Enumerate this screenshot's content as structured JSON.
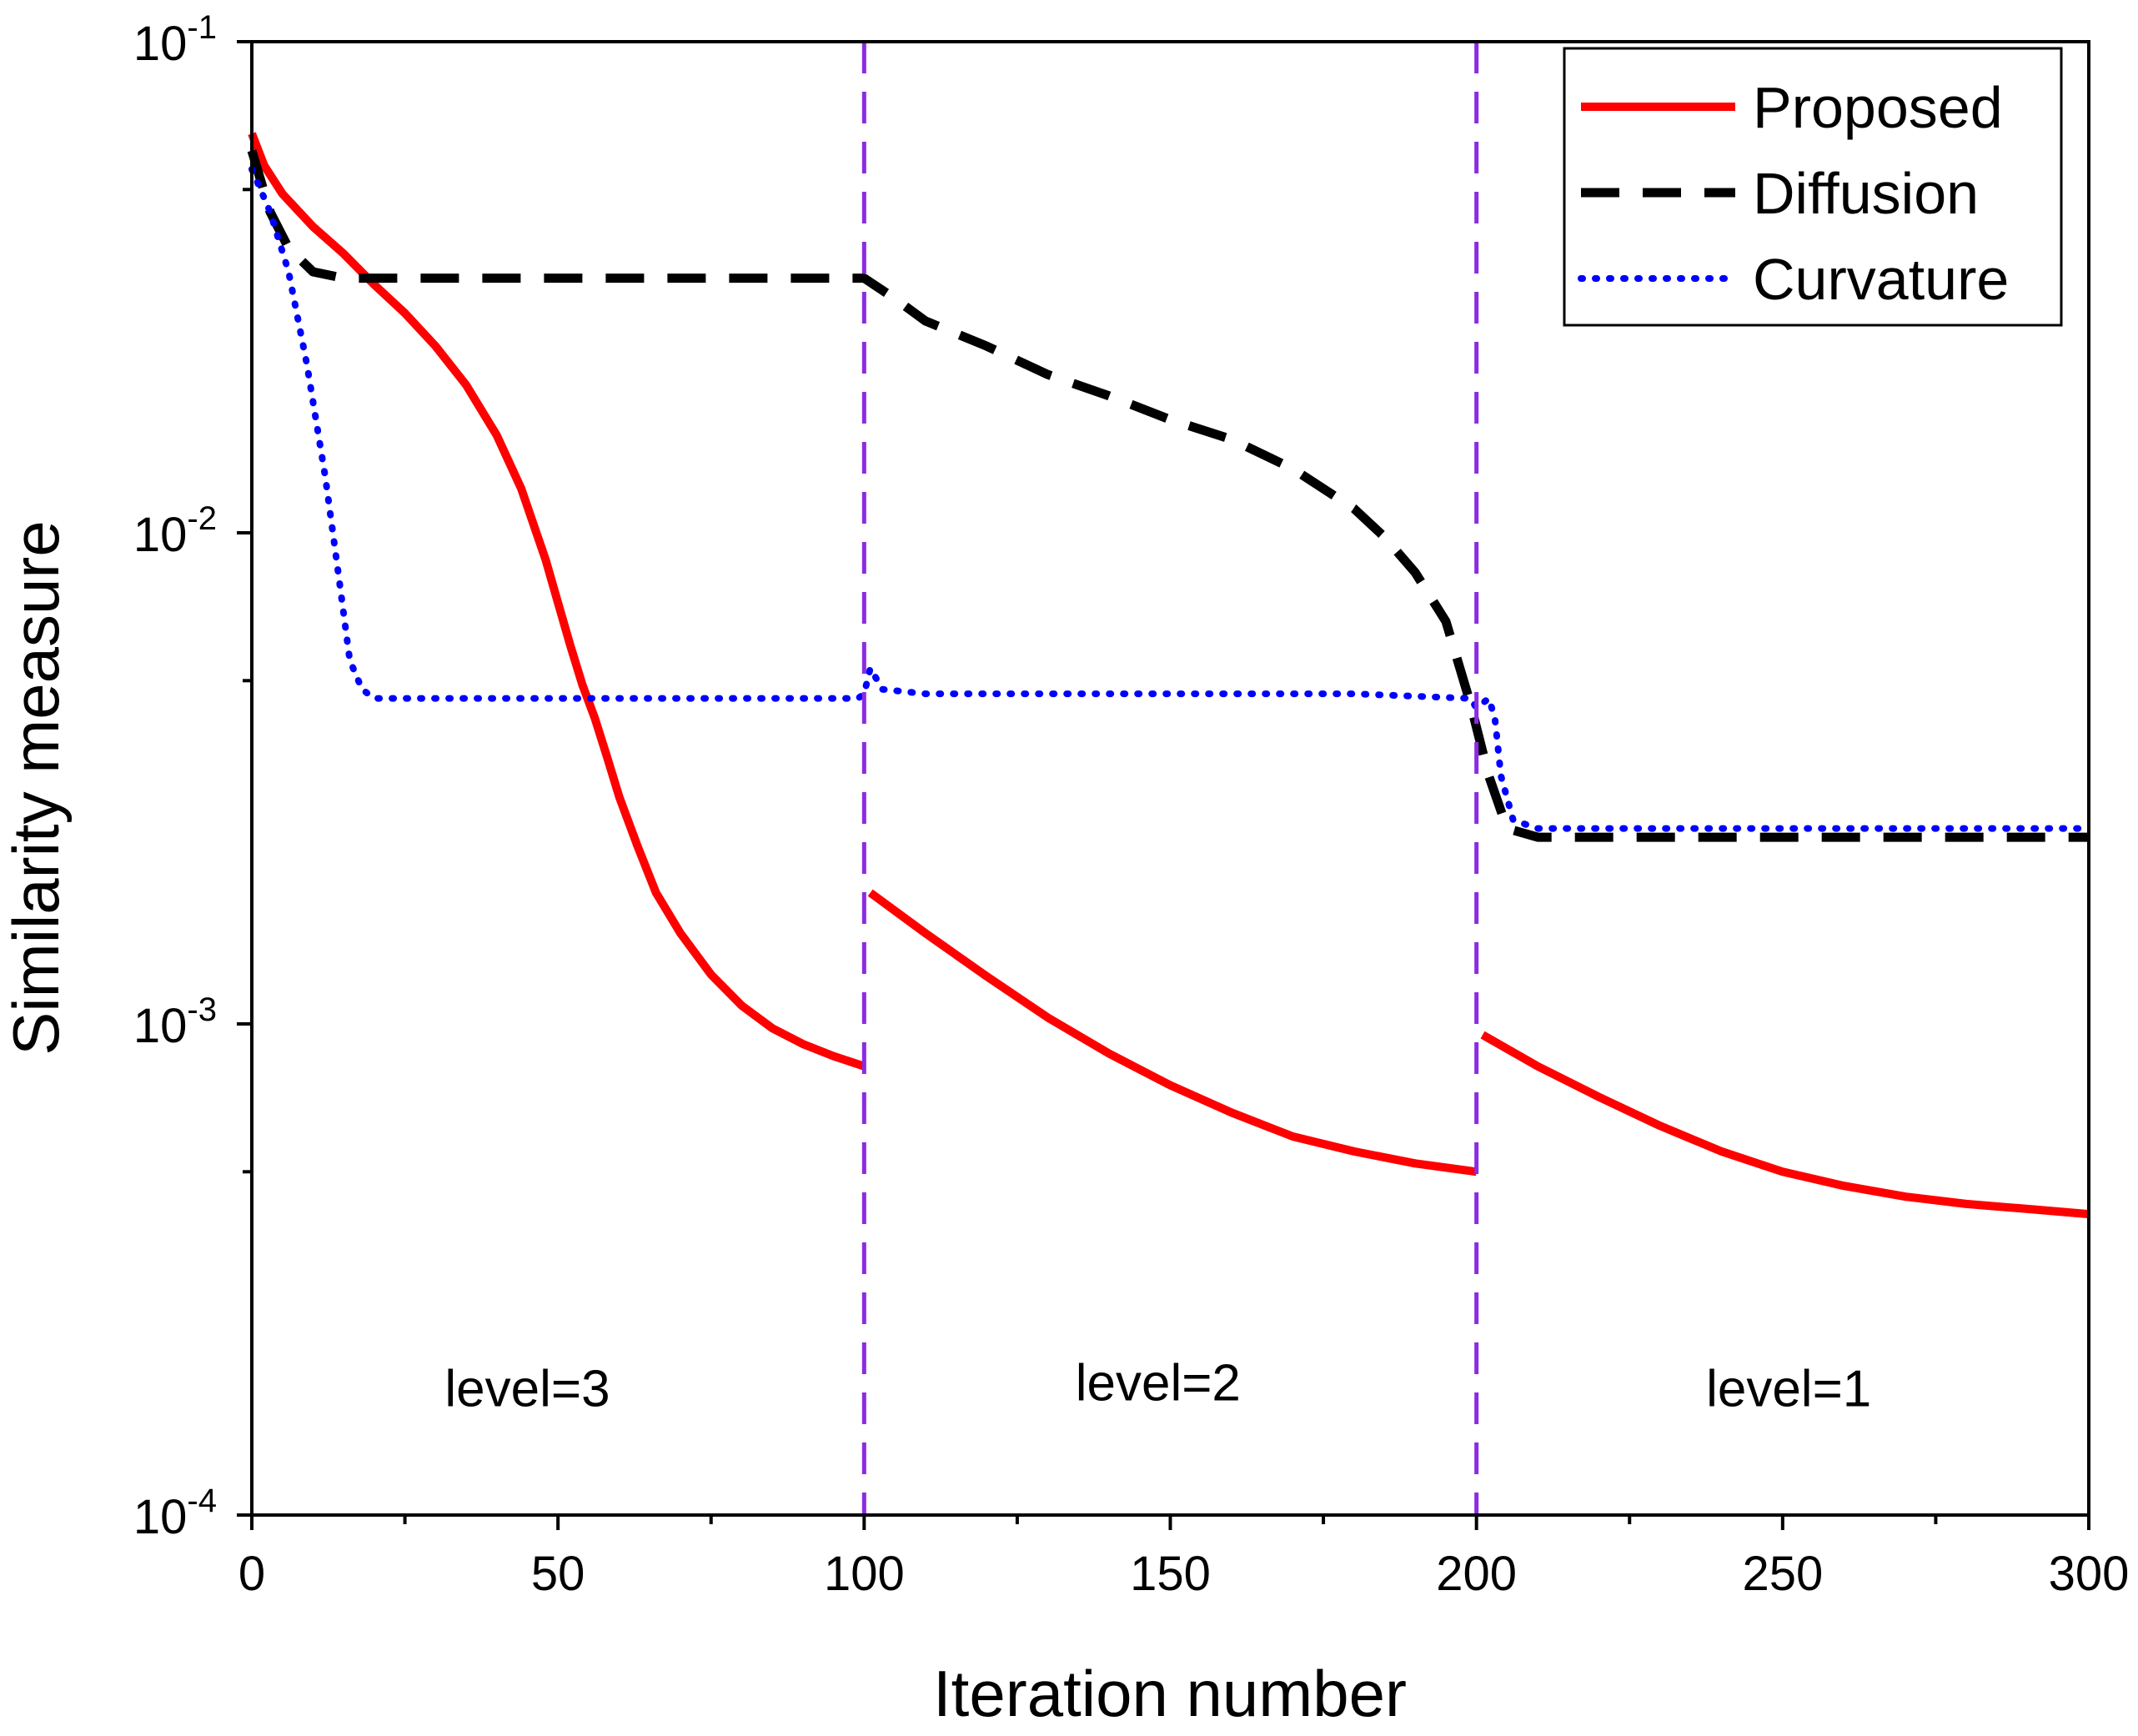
{
  "chart_data": {
    "type": "line",
    "xlabel": "Iteration number",
    "ylabel": "Similarity measure",
    "xlim": [
      0,
      300
    ],
    "ylim": [
      0.0001,
      0.1
    ],
    "yscale": "log",
    "x_ticks": [
      0,
      50,
      100,
      150,
      200,
      250,
      300
    ],
    "x_tick_labels": [
      "0",
      "50",
      "100",
      "150",
      "200",
      "250",
      "300"
    ],
    "y_ticks": [
      {
        "value": 0.1,
        "base": "10",
        "exp": "-1"
      },
      {
        "value": 0.01,
        "base": "10",
        "exp": "-2"
      },
      {
        "value": 0.001,
        "base": "10",
        "exp": "-3"
      },
      {
        "value": 0.0001,
        "base": "10",
        "exp": "-4"
      }
    ],
    "legend_position": "top-right",
    "level_boundaries": [
      100,
      200
    ],
    "level_color": "#8B2BE2",
    "level_labels": [
      {
        "text": "level=3",
        "x": 45,
        "y": 0.00018
      },
      {
        "text": "level=2",
        "x": 148,
        "y": 0.000185
      },
      {
        "text": "level=1",
        "x": 251,
        "y": 0.00018
      }
    ],
    "series": [
      {
        "name": "Proposed",
        "color": "#FF0000",
        "style": "solid",
        "segments": [
          [
            [
              0,
              0.065
            ],
            [
              2,
              0.056
            ],
            [
              5,
              0.049
            ],
            [
              10,
              0.042
            ],
            [
              15,
              0.037
            ],
            [
              20,
              0.032
            ],
            [
              25,
              0.028
            ],
            [
              30,
              0.024
            ],
            [
              35,
              0.02
            ],
            [
              40,
              0.0158
            ],
            [
              44,
              0.0123
            ],
            [
              48,
              0.0088
            ],
            [
              50,
              0.0072
            ],
            [
              52,
              0.0059
            ],
            [
              54,
              0.0049
            ],
            [
              56,
              0.0042
            ],
            [
              58,
              0.0035
            ],
            [
              60,
              0.0029
            ],
            [
              63,
              0.0023
            ],
            [
              66,
              0.00185
            ],
            [
              70,
              0.00153
            ],
            [
              75,
              0.00126
            ],
            [
              80,
              0.00109
            ],
            [
              85,
              0.00098
            ],
            [
              90,
              0.00091
            ],
            [
              95,
              0.00086
            ],
            [
              100,
              0.00082
            ]
          ],
          [
            [
              101,
              0.00185
            ],
            [
              110,
              0.00153
            ],
            [
              120,
              0.00125
            ],
            [
              130,
              0.00103
            ],
            [
              140,
              0.00087
            ],
            [
              150,
              0.00075
            ],
            [
              160,
              0.00066
            ],
            [
              170,
              0.00059
            ],
            [
              180,
              0.00055
            ],
            [
              190,
              0.00052
            ],
            [
              200,
              0.0005
            ]
          ],
          [
            [
              201,
              0.00095
            ],
            [
              210,
              0.00082
            ],
            [
              220,
              0.00071
            ],
            [
              230,
              0.00062
            ],
            [
              240,
              0.00055
            ],
            [
              250,
              0.0005
            ],
            [
              260,
              0.000468
            ],
            [
              270,
              0.000445
            ],
            [
              280,
              0.00043
            ],
            [
              290,
              0.00042
            ],
            [
              300,
              0.00041
            ]
          ]
        ]
      },
      {
        "name": "Diffusion",
        "color": "#000000",
        "style": "dashed",
        "segments": [
          [
            [
              0,
              0.06
            ],
            [
              3,
              0.045
            ],
            [
              6,
              0.038
            ],
            [
              10,
              0.034
            ],
            [
              15,
              0.033
            ],
            [
              30,
              0.033
            ],
            [
              50,
              0.033
            ],
            [
              70,
              0.033
            ],
            [
              90,
              0.033
            ],
            [
              100,
              0.033
            ],
            [
              105,
              0.03
            ],
            [
              110,
              0.027
            ],
            [
              120,
              0.024
            ],
            [
              130,
              0.021
            ],
            [
              140,
              0.019
            ],
            [
              150,
              0.017
            ],
            [
              160,
              0.0155
            ],
            [
              170,
              0.0135
            ],
            [
              180,
              0.0112
            ],
            [
              185,
              0.0098
            ],
            [
              190,
              0.0083
            ],
            [
              195,
              0.0066
            ],
            [
              199,
              0.0045
            ],
            [
              202,
              0.0032
            ],
            [
              205,
              0.0025
            ],
            [
              210,
              0.0024
            ],
            [
              230,
              0.0024
            ],
            [
              250,
              0.0024
            ],
            [
              270,
              0.0024
            ],
            [
              300,
              0.0024
            ]
          ]
        ]
      },
      {
        "name": "Curvature",
        "color": "#0000FF",
        "style": "dotted",
        "segments": [
          [
            [
              0,
              0.055
            ],
            [
              3,
              0.045
            ],
            [
              6,
              0.034
            ],
            [
              9,
              0.022
            ],
            [
              12,
              0.013
            ],
            [
              14,
              0.0085
            ],
            [
              16,
              0.0055
            ],
            [
              18,
              0.0048
            ],
            [
              20,
              0.0046
            ],
            [
              40,
              0.0046
            ],
            [
              60,
              0.0046
            ],
            [
              80,
              0.0046
            ],
            [
              99,
              0.0046
            ],
            [
              100,
              0.0047
            ],
            [
              101,
              0.0053
            ],
            [
              103,
              0.0048
            ],
            [
              110,
              0.0047
            ],
            [
              150,
              0.0047
            ],
            [
              180,
              0.0047
            ],
            [
              199,
              0.0046
            ],
            [
              200,
              0.0044
            ],
            [
              202,
              0.0046
            ],
            [
              203,
              0.0042
            ],
            [
              204,
              0.0032
            ],
            [
              206,
              0.0026
            ],
            [
              210,
              0.0025
            ],
            [
              250,
              0.0025
            ],
            [
              300,
              0.0025
            ]
          ]
        ]
      }
    ]
  }
}
